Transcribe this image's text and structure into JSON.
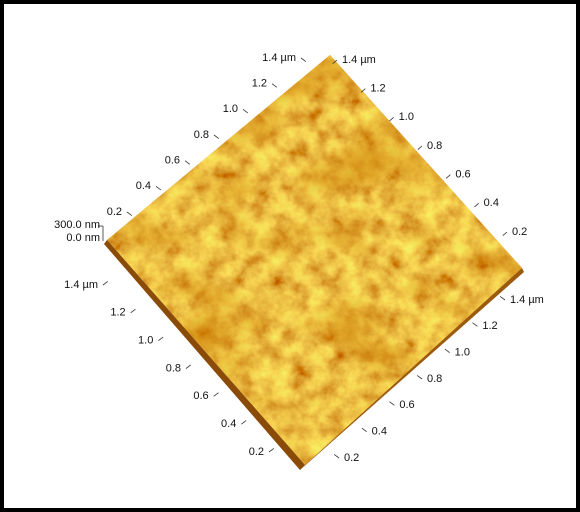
{
  "axes": {
    "upper_left": {
      "labels": [
        "1.4 µm",
        "1.2",
        "1.0",
        "0.8",
        "0.6",
        "0.4",
        "0.2"
      ]
    },
    "upper_right": {
      "labels": [
        "1.4 µm",
        "1.2",
        "1.0",
        "0.8",
        "0.6",
        "0.4",
        "0.2"
      ]
    },
    "lower_left": {
      "labels": [
        "1.4 µm",
        "1.2",
        "1.0",
        "0.8",
        "0.6",
        "0.4",
        "0.2"
      ]
    },
    "lower_right": {
      "labels": [
        "1.4 µm",
        "1.2",
        "1.0",
        "0.8",
        "0.6",
        "0.4",
        "0.2"
      ]
    },
    "z": {
      "labels": [
        "300.0 nm",
        "0.0 nm"
      ]
    }
  }
}
